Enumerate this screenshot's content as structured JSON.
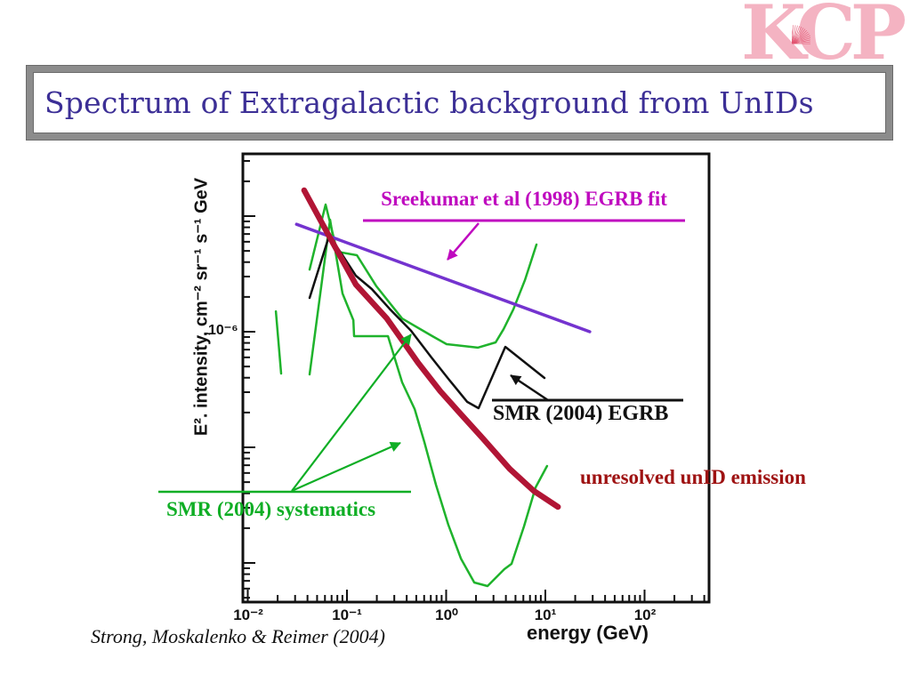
{
  "slide": {
    "title": "Spectrum of Extragalactic background from UnIDs",
    "citation": "Strong, Moskalenko & Reimer (2004)",
    "logo": {
      "name": "KICP",
      "k": "K",
      "c": "C",
      "p": "P",
      "pink": "#f4b3c2",
      "burst_color": "#e25672"
    },
    "colors": {
      "title_ink": "#3c2f96",
      "border_gray": "#8c8c8c"
    }
  },
  "chart_data": {
    "type": "line",
    "title": "",
    "xlabel": "energy (GeV)",
    "ylabel": "E². intensity, cm⁻² sr⁻¹ s⁻¹ GeV",
    "xscale": "log",
    "yscale": "log",
    "xlim": [
      0.009,
      400
    ],
    "ylim": [
      4.6e-09,
      3.5e-05
    ],
    "grid": false,
    "x_tick_labels": [
      "10⁻²",
      "10⁻¹",
      "10⁰",
      "10¹",
      "10²"
    ],
    "x_tick_values": [
      0.01,
      0.1,
      1,
      10,
      100
    ],
    "y_tick_label": "10⁻⁶",
    "y_tick_value": 1e-06,
    "series": [
      {
        "id": "systematics-lowE-fragment",
        "name": "SMR (2004) systematics (low-E edge)",
        "color": "#1fb32c",
        "width": 2.5,
        "points": [
          [
            0.0192,
            1.5e-06
          ],
          [
            0.0217,
            4.35e-07
          ]
        ]
      },
      {
        "id": "systematics-lower",
        "name": "SMR (2004) systematics (lower bound)",
        "color": "#1fb32c",
        "width": 2.5,
        "points": [
          [
            0.042,
            4.27e-07
          ],
          [
            0.0675,
            9.31e-06
          ],
          [
            0.0902,
            2.14e-06
          ],
          [
            0.116,
            1.26e-06
          ],
          [
            0.118,
            9.15e-07
          ],
          [
            0.259,
            9.15e-07
          ],
          [
            0.36,
            3.65e-07
          ],
          [
            0.481,
            2.14e-07
          ],
          [
            0.603,
            1.11e-07
          ],
          [
            0.789,
            4.75e-08
          ],
          [
            1.05,
            2.14e-08
          ],
          [
            1.41,
            1.09e-08
          ],
          [
            1.92,
            6.77e-09
          ],
          [
            2.61,
            6.31e-09
          ],
          [
            3.86,
            8.83e-09
          ],
          [
            4.56,
            9.82e-09
          ],
          [
            6.09,
            2.07e-08
          ],
          [
            7.97,
            4.5e-08
          ],
          [
            10.4,
            6.89e-08
          ]
        ]
      },
      {
        "id": "systematics-upper",
        "name": "SMR (2004) systematics (upper bound)",
        "color": "#1fb32c",
        "width": 2.5,
        "points": [
          [
            0.042,
            3.45e-06
          ],
          [
            0.0609,
            1.26e-05
          ],
          [
            0.0797,
            4.92e-06
          ],
          [
            0.126,
            4.59e-06
          ],
          [
            0.198,
            2.47e-06
          ],
          [
            0.36,
            1.3e-06
          ],
          [
            0.726,
            9.15e-07
          ],
          [
            1.01,
            7.8e-07
          ],
          [
            2.08,
            7.28e-07
          ],
          [
            3.15,
            8.08e-07
          ],
          [
            3.79,
            1.05e-06
          ],
          [
            4.75,
            1.56e-06
          ],
          [
            6.22,
            2.79e-06
          ],
          [
            8.13,
            5.67e-06
          ]
        ]
      },
      {
        "id": "sreekumar-fit",
        "name": "Sreekumar et al (1998) EGRB fit",
        "color": "#7433cf",
        "width": 3.5,
        "points": [
          [
            0.031,
            8.5e-06
          ],
          [
            28,
            1e-06
          ]
        ]
      },
      {
        "id": "smr-egrb",
        "name": "SMR (2004) EGRB",
        "color": "#111111",
        "width": 2.5,
        "points": [
          [
            0.042,
            1.96e-06
          ],
          [
            0.0662,
            6.77e-06
          ],
          [
            0.0902,
            4.59e-06
          ],
          [
            0.123,
            3.05e-06
          ],
          [
            0.178,
            2.34e-06
          ],
          [
            0.269,
            1.58e-06
          ],
          [
            0.442,
            1.02e-06
          ],
          [
            0.711,
            5.98e-07
          ],
          [
            1.07,
            3.84e-07
          ],
          [
            1.63,
            2.47e-07
          ],
          [
            2.12,
            2.18e-07
          ],
          [
            3.95,
            7.4e-07
          ],
          [
            9.8,
            3.98e-07
          ]
        ]
      },
      {
        "id": "unresolved-unid",
        "name": "unresolved unID emission",
        "color": "#b11535",
        "width": 6.5,
        "points": [
          [
            0.037,
            1.67e-05
          ],
          [
            0.0635,
            7.14e-06
          ],
          [
            0.123,
            2.56e-06
          ],
          [
            0.253,
            1.3e-06
          ],
          [
            0.522,
            5.38e-07
          ],
          [
            0.874,
            3.05e-07
          ],
          [
            1.31,
            2.07e-07
          ],
          [
            2.35,
            1.19e-07
          ],
          [
            4.38,
            6.5e-08
          ],
          [
            7.64,
            4.2e-08
          ],
          [
            13.4,
            3.05e-08
          ]
        ]
      }
    ],
    "annotations": [
      {
        "id": "sreekumar",
        "text": "Sreekumar et al (1998) EGRB fit",
        "color": "#bf0abf"
      },
      {
        "id": "smr-egrb",
        "text": "SMR (2004) EGRB",
        "color": "#111111"
      },
      {
        "id": "smr-systematics",
        "text": "SMR (2004) systematics",
        "color": "#0fae25"
      },
      {
        "id": "unresolved",
        "text": "unresolved unID emission",
        "color": "#9e1212"
      }
    ],
    "legend_position": "none"
  }
}
